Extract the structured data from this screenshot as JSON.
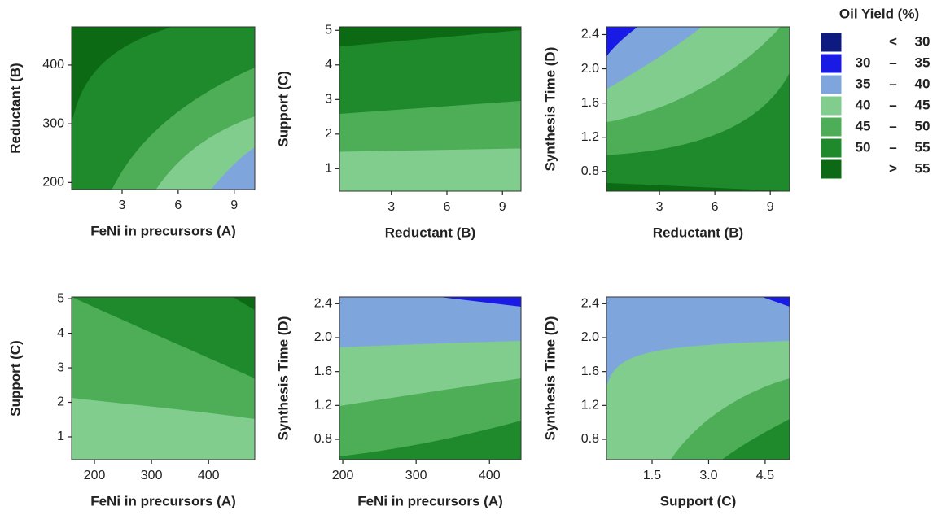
{
  "chart_data": [
    {
      "type": "contour",
      "xlabel": "FeNi in precursors (A)",
      "ylabel": "Reductant (B)",
      "xlim": [
        0.3,
        10.1
      ],
      "ylim": [
        188,
        465
      ],
      "xticks": [
        3,
        6,
        9
      ],
      "yticks": [
        200,
        300,
        400
      ]
    },
    {
      "type": "contour",
      "xlabel": "Reductant (B)",
      "ylabel": "Support (C)",
      "xlim": [
        0.2,
        10
      ],
      "ylim": [
        0.35,
        5.1
      ],
      "xticks": [
        3,
        6,
        9
      ],
      "yticks": [
        1,
        2,
        3,
        4,
        5
      ]
    },
    {
      "type": "contour",
      "xlabel": "Reductant (B)",
      "ylabel": "Synthesis Time (D)",
      "xlim": [
        0.13,
        10.05
      ],
      "ylim": [
        0.57,
        2.49
      ],
      "xticks": [
        3,
        6,
        9
      ],
      "yticks": [
        0.8,
        1.2,
        1.6,
        {
          "value": 2,
          "label": "2.0"
        },
        2.4
      ]
    },
    {
      "type": "contour",
      "xlabel": "FeNi in precursors (A)",
      "ylabel": "Support (C)",
      "xlim": [
        160,
        481
      ],
      "ylim": [
        0.34,
        5.05
      ],
      "xticks": [
        200,
        300,
        400
      ],
      "yticks": [
        1,
        2,
        3,
        4,
        5
      ]
    },
    {
      "type": "contour",
      "xlabel": "FeNi in precursors (A)",
      "ylabel": "Synthesis Time (D)",
      "xlim": [
        195.5,
        443
      ],
      "ylim": [
        0.56,
        2.48
      ],
      "xticks": [
        200,
        300,
        400
      ],
      "yticks": [
        0.8,
        1.2,
        1.6,
        {
          "value": 2,
          "label": "2.0"
        },
        2.4
      ]
    },
    {
      "type": "contour",
      "xlabel": "Support (C)",
      "ylabel": "Synthesis Time (D)",
      "xlim": [
        0.29,
        5.15
      ],
      "ylim": [
        0.56,
        2.48
      ],
      "xticks": [
        1.5,
        {
          "value": 3,
          "label": "3.0"
        },
        4.5
      ],
      "yticks": [
        0.8,
        1.2,
        1.6,
        {
          "value": 2,
          "label": "2.0"
        },
        2.4
      ]
    }
  ],
  "legend": {
    "title": "Oil Yield (%)",
    "items": [
      {
        "color": "#0d1a80",
        "sep": "<",
        "hi": 30
      },
      {
        "color": "#1a1ae6",
        "lo": 30,
        "sep": "–",
        "hi": 35
      },
      {
        "color": "#7fa6dc",
        "lo": 35,
        "sep": "–",
        "hi": 40
      },
      {
        "color": "#80cd8e",
        "lo": 40,
        "sep": "–",
        "hi": 45
      },
      {
        "color": "#4dae57",
        "lo": 45,
        "sep": "–",
        "hi": 50
      },
      {
        "color": "#1e8a2c",
        "lo": 50,
        "sep": "–",
        "hi": 55
      },
      {
        "color": "#0b6a13",
        "sep": ">",
        "hi": 55
      }
    ]
  }
}
